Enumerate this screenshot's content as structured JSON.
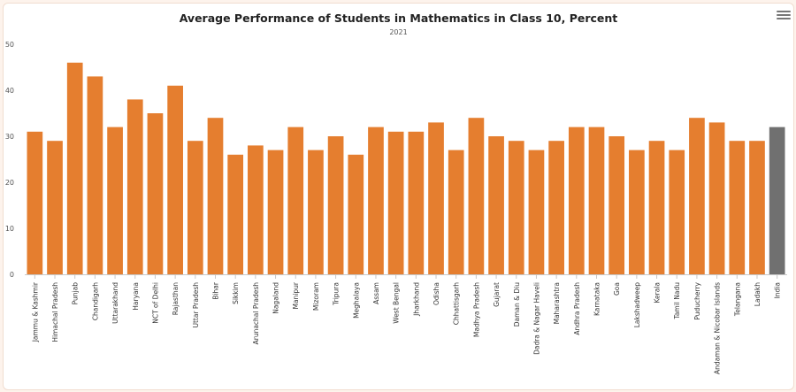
{
  "chart_data": {
    "type": "bar",
    "title": "Average Performance of Students in Mathematics in Class 10, Percent",
    "subtitle": "2021",
    "categories": [
      "Jammu & Kashmir",
      "Himachal Pradesh",
      "Punjab",
      "Chandigarh",
      "Uttarakhand",
      "Haryana",
      "NCT of Delhi",
      "Rajasthan",
      "Uttar Pradesh",
      "Bihar",
      "Sikkim",
      "Arunachal Pradesh",
      "Nagaland",
      "Manipur",
      "Mizoram",
      "Tripura",
      "Meghalaya",
      "Assam",
      "West Bengal",
      "Jharkhand",
      "Odisha",
      "Chhattisgarh",
      "Madhya Pradesh",
      "Gujarat",
      "Daman & Diu",
      "Dadra & Nagar Haveli",
      "Maharashtra",
      "Andhra Pradesh",
      "Karnataka",
      "Goa",
      "Lakshadweep",
      "Kerala",
      "Tamil Nadu",
      "Puducherry",
      "Andaman & Nicobar Islands",
      "Telangana",
      "Ladakh",
      "India"
    ],
    "values": [
      31,
      29,
      46,
      43,
      32,
      38,
      35,
      41,
      29,
      34,
      26,
      28,
      27,
      32,
      27,
      30,
      26,
      32,
      31,
      31,
      33,
      27,
      34,
      30,
      29,
      27,
      29,
      32,
      32,
      30,
      27,
      29,
      27,
      34,
      33,
      29,
      29,
      32
    ],
    "ylim": [
      0,
      50
    ],
    "yticks": [
      0,
      10,
      20,
      30,
      40,
      50
    ],
    "grid": false,
    "colors": {
      "bar": "#e57e2f",
      "highlight": "#707070",
      "highlight_category": "India"
    }
  },
  "menu_icon": "hamburger-menu-icon"
}
